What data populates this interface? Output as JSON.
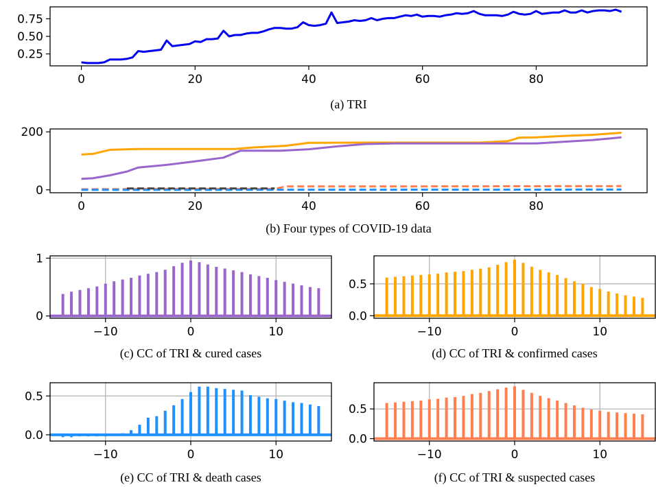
{
  "chart_data": [
    {
      "id": "a",
      "type": "line",
      "caption": "(a) TRI",
      "xlim": [
        -5.5,
        99.5
      ],
      "ylim": [
        0.08,
        0.92
      ],
      "xticks": [
        0,
        20,
        40,
        60,
        80
      ],
      "yticks": [
        0.25,
        0.5,
        0.75
      ],
      "ytick_labels": [
        "0.25",
        "0.50",
        "0.75"
      ],
      "grid": false,
      "series": [
        {
          "color": "#0000ee",
          "dash": false,
          "points": [
            [
              0,
              0.13
            ],
            [
              1,
              0.12
            ],
            [
              2,
              0.12
            ],
            [
              3,
              0.12
            ],
            [
              4,
              0.13
            ],
            [
              5,
              0.17
            ],
            [
              6,
              0.17
            ],
            [
              7,
              0.17
            ],
            [
              8,
              0.18
            ],
            [
              9,
              0.2
            ],
            [
              10,
              0.29
            ],
            [
              11,
              0.28
            ],
            [
              12,
              0.29
            ],
            [
              13,
              0.3
            ],
            [
              14,
              0.31
            ],
            [
              15,
              0.44
            ],
            [
              16,
              0.36
            ],
            [
              17,
              0.37
            ],
            [
              18,
              0.38
            ],
            [
              19,
              0.39
            ],
            [
              20,
              0.43
            ],
            [
              21,
              0.42
            ],
            [
              22,
              0.46
            ],
            [
              23,
              0.46
            ],
            [
              24,
              0.47
            ],
            [
              25,
              0.58
            ],
            [
              26,
              0.5
            ],
            [
              27,
              0.52
            ],
            [
              28,
              0.52
            ],
            [
              29,
              0.54
            ],
            [
              30,
              0.55
            ],
            [
              31,
              0.55
            ],
            [
              32,
              0.57
            ],
            [
              33,
              0.6
            ],
            [
              34,
              0.62
            ],
            [
              35,
              0.62
            ],
            [
              36,
              0.61
            ],
            [
              37,
              0.61
            ],
            [
              38,
              0.63
            ],
            [
              39,
              0.7
            ],
            [
              40,
              0.66
            ],
            [
              41,
              0.65
            ],
            [
              42,
              0.66
            ],
            [
              43,
              0.68
            ],
            [
              44,
              0.84
            ],
            [
              45,
              0.69
            ],
            [
              46,
              0.7
            ],
            [
              47,
              0.71
            ],
            [
              48,
              0.73
            ],
            [
              49,
              0.72
            ],
            [
              50,
              0.73
            ],
            [
              51,
              0.76
            ],
            [
              52,
              0.73
            ],
            [
              53,
              0.75
            ],
            [
              54,
              0.76
            ],
            [
              55,
              0.76
            ],
            [
              56,
              0.78
            ],
            [
              57,
              0.8
            ],
            [
              58,
              0.79
            ],
            [
              59,
              0.81
            ],
            [
              60,
              0.78
            ],
            [
              61,
              0.79
            ],
            [
              62,
              0.79
            ],
            [
              63,
              0.78
            ],
            [
              64,
              0.8
            ],
            [
              65,
              0.81
            ],
            [
              66,
              0.83
            ],
            [
              67,
              0.82
            ],
            [
              68,
              0.83
            ],
            [
              69,
              0.86
            ],
            [
              70,
              0.82
            ],
            [
              71,
              0.8
            ],
            [
              72,
              0.8
            ],
            [
              73,
              0.8
            ],
            [
              74,
              0.79
            ],
            [
              75,
              0.81
            ],
            [
              76,
              0.85
            ],
            [
              77,
              0.82
            ],
            [
              78,
              0.81
            ],
            [
              79,
              0.82
            ],
            [
              80,
              0.86
            ],
            [
              81,
              0.82
            ],
            [
              82,
              0.83
            ],
            [
              83,
              0.84
            ],
            [
              84,
              0.84
            ],
            [
              85,
              0.87
            ],
            [
              86,
              0.84
            ],
            [
              87,
              0.84
            ],
            [
              88,
              0.87
            ],
            [
              89,
              0.84
            ],
            [
              90,
              0.86
            ],
            [
              91,
              0.87
            ],
            [
              92,
              0.87
            ],
            [
              93,
              0.86
            ],
            [
              94,
              0.88
            ],
            [
              95,
              0.85
            ]
          ]
        }
      ]
    },
    {
      "id": "b",
      "type": "line",
      "caption": "(b) Four types of COVID-19 data",
      "xlim": [
        -5.5,
        99.5
      ],
      "ylim": [
        -10,
        210
      ],
      "xticks": [
        0,
        20,
        40,
        60,
        80
      ],
      "yticks": [
        0,
        200
      ],
      "ytick_labels": [
        "0",
        "200"
      ],
      "grid": false,
      "series": [
        {
          "color": "#ffa500",
          "dash": false,
          "points": [
            [
              0,
              122
            ],
            [
              2,
              124
            ],
            [
              5,
              138
            ],
            [
              10,
              141
            ],
            [
              20,
              141
            ],
            [
              27,
              141
            ],
            [
              30,
              146
            ],
            [
              34,
              150
            ],
            [
              36,
              152
            ],
            [
              40,
              162
            ],
            [
              50,
              163
            ],
            [
              60,
              163
            ],
            [
              70,
              163
            ],
            [
              75,
              168
            ],
            [
              77,
              180
            ],
            [
              80,
              181
            ],
            [
              85,
              186
            ],
            [
              90,
              190
            ],
            [
              95,
              197
            ]
          ]
        },
        {
          "color": "#9966cc",
          "dash": false,
          "points": [
            [
              0,
              38
            ],
            [
              2,
              40
            ],
            [
              5,
              50
            ],
            [
              8,
              63
            ],
            [
              10,
              77
            ],
            [
              15,
              86
            ],
            [
              20,
              98
            ],
            [
              25,
              111
            ],
            [
              28,
              135
            ],
            [
              35,
              135
            ],
            [
              40,
              140
            ],
            [
              45,
              150
            ],
            [
              50,
              158
            ],
            [
              55,
              160
            ],
            [
              60,
              160
            ],
            [
              70,
              160
            ],
            [
              80,
              160
            ],
            [
              85,
              166
            ],
            [
              90,
              172
            ],
            [
              95,
              181
            ]
          ]
        },
        {
          "color": "#ff7f50",
          "dash": true,
          "points": [
            [
              0,
              2
            ],
            [
              15,
              3
            ],
            [
              34,
              3
            ],
            [
              36,
              12
            ],
            [
              60,
              12
            ],
            [
              95,
              13
            ]
          ]
        },
        {
          "color": "#1e90ff",
          "dash": true,
          "points": [
            [
              0,
              0
            ],
            [
              95,
              1
            ]
          ]
        },
        {
          "color": "#444444",
          "dash": true,
          "points": [
            [
              8,
              5
            ],
            [
              34,
              5
            ]
          ]
        }
      ]
    },
    {
      "id": "c",
      "type": "bar",
      "caption": "(c) CC of TRI & cured cases",
      "color": "#9966cc",
      "xlim": [
        -16.5,
        16.5
      ],
      "ylim": [
        -0.04,
        1.04
      ],
      "xticks": [
        -10,
        0,
        10
      ],
      "xtick_labels": [
        "−10",
        "0",
        "10"
      ],
      "yticks": [
        0,
        1
      ],
      "ytick_labels": [
        "0",
        "1"
      ],
      "grid": true,
      "x": [
        -15,
        -14,
        -13,
        -12,
        -11,
        -10,
        -9,
        -8,
        -7,
        -6,
        -5,
        -4,
        -3,
        -2,
        -1,
        0,
        1,
        2,
        3,
        4,
        5,
        6,
        7,
        8,
        9,
        10,
        11,
        12,
        13,
        14,
        15
      ],
      "values": [
        0.38,
        0.42,
        0.45,
        0.48,
        0.51,
        0.56,
        0.6,
        0.63,
        0.66,
        0.7,
        0.73,
        0.76,
        0.8,
        0.86,
        0.92,
        0.96,
        0.93,
        0.89,
        0.85,
        0.82,
        0.79,
        0.76,
        0.72,
        0.69,
        0.66,
        0.62,
        0.59,
        0.56,
        0.53,
        0.5,
        0.48
      ]
    },
    {
      "id": "d",
      "type": "bar",
      "caption": "(d) CC of TRI & confirmed cases",
      "color": "#ffa500",
      "xlim": [
        -16.5,
        16.5
      ],
      "ylim": [
        -0.04,
        0.94
      ],
      "xticks": [
        -10,
        0,
        10
      ],
      "xtick_labels": [
        "−10",
        "0",
        "10"
      ],
      "yticks": [
        0,
        0.5
      ],
      "ytick_labels": [
        "0.0",
        "0.5"
      ],
      "grid": true,
      "x": [
        -15,
        -14,
        -13,
        -12,
        -11,
        -10,
        -9,
        -8,
        -7,
        -6,
        -5,
        -4,
        -3,
        -2,
        -1,
        0,
        1,
        2,
        3,
        4,
        5,
        6,
        7,
        8,
        9,
        10,
        11,
        12,
        13,
        14,
        15
      ],
      "values": [
        0.6,
        0.61,
        0.62,
        0.63,
        0.64,
        0.65,
        0.66,
        0.68,
        0.69,
        0.7,
        0.72,
        0.74,
        0.76,
        0.8,
        0.84,
        0.88,
        0.83,
        0.77,
        0.72,
        0.68,
        0.64,
        0.59,
        0.54,
        0.5,
        0.45,
        0.42,
        0.38,
        0.35,
        0.32,
        0.3,
        0.28
      ]
    },
    {
      "id": "e",
      "type": "bar",
      "caption": "(e) CC of TRI & death cases",
      "color": "#1e90ff",
      "xlim": [
        -16.5,
        16.5
      ],
      "ylim": [
        -0.08,
        0.67
      ],
      "xticks": [
        -10,
        0,
        10
      ],
      "xtick_labels": [
        "−10",
        "0",
        "10"
      ],
      "yticks": [
        0,
        0.5
      ],
      "ytick_labels": [
        "0.0",
        "0.5"
      ],
      "grid": true,
      "x": [
        -15,
        -14,
        -13,
        -12,
        -11,
        -10,
        -9,
        -8,
        -7,
        -6,
        -5,
        -4,
        -3,
        -2,
        -1,
        0,
        1,
        2,
        3,
        4,
        5,
        6,
        7,
        8,
        9,
        10,
        11,
        12,
        13,
        14,
        15
      ],
      "values": [
        -0.03,
        -0.03,
        -0.02,
        -0.02,
        -0.02,
        -0.02,
        -0.01,
        0.02,
        0.06,
        0.13,
        0.22,
        0.24,
        0.31,
        0.38,
        0.46,
        0.55,
        0.62,
        0.62,
        0.6,
        0.59,
        0.58,
        0.57,
        0.51,
        0.49,
        0.47,
        0.46,
        0.44,
        0.42,
        0.41,
        0.39,
        0.37
      ]
    },
    {
      "id": "f",
      "type": "bar",
      "caption": "(f) CC of TRI & suspected cases",
      "color": "#ff7f50",
      "xlim": [
        -16.5,
        16.5
      ],
      "ylim": [
        -0.04,
        0.94
      ],
      "xticks": [
        -10,
        0,
        10
      ],
      "xtick_labels": [
        "−10",
        "0",
        "10"
      ],
      "yticks": [
        0,
        0.5
      ],
      "ytick_labels": [
        "0.0",
        "0.5"
      ],
      "grid": true,
      "x": [
        -15,
        -14,
        -13,
        -12,
        -11,
        -10,
        -9,
        -8,
        -7,
        -6,
        -5,
        -4,
        -3,
        -2,
        -1,
        0,
        1,
        2,
        3,
        4,
        5,
        6,
        7,
        8,
        9,
        10,
        11,
        12,
        13,
        14,
        15
      ],
      "values": [
        0.6,
        0.61,
        0.62,
        0.63,
        0.64,
        0.66,
        0.67,
        0.69,
        0.7,
        0.72,
        0.75,
        0.77,
        0.8,
        0.83,
        0.86,
        0.88,
        0.82,
        0.77,
        0.72,
        0.68,
        0.64,
        0.6,
        0.56,
        0.52,
        0.49,
        0.47,
        0.45,
        0.44,
        0.43,
        0.42,
        0.41
      ]
    }
  ]
}
